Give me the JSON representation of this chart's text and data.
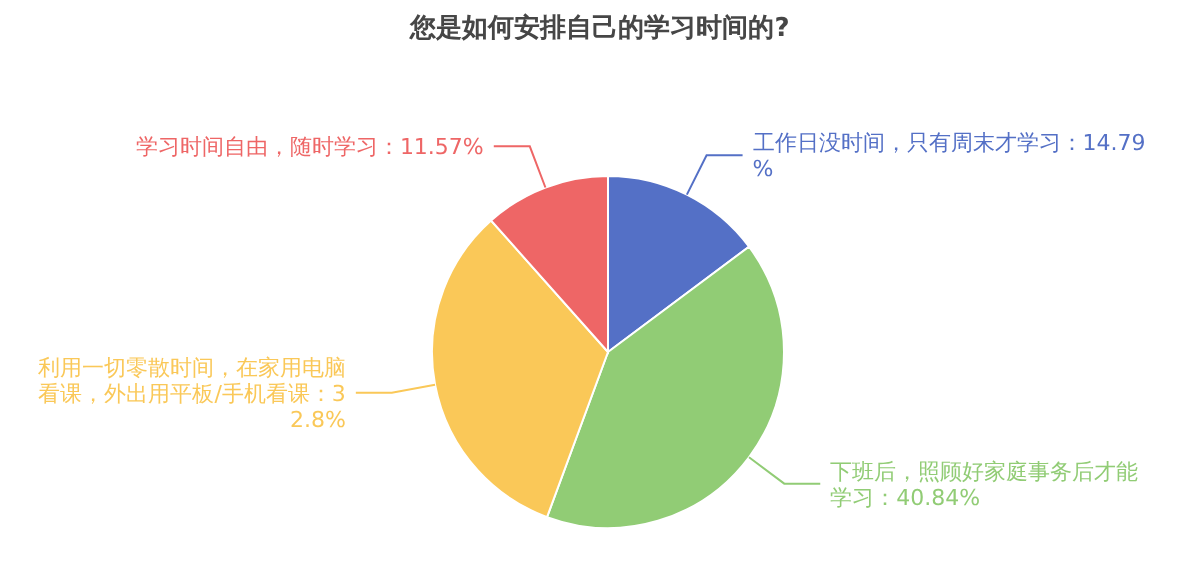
{
  "chart_data": {
    "type": "pie",
    "title": "您是如何安排自己的学习时间的?",
    "categories": [
      "工作日没时间，只有周末才学习",
      "下班后，照顾好家庭事务后才能学习",
      "利用一切零散时间，在家用电脑看课，外出用平板/手机看课",
      "学习时间自由，随时学习"
    ],
    "values": [
      14.79,
      40.84,
      32.8,
      11.57
    ],
    "value_labels": [
      "：14.79%",
      "：40.84%",
      "：32.8%",
      "：11.57%"
    ],
    "colors": [
      "#5470c6",
      "#91cc75",
      "#fac858",
      "#ee6666"
    ]
  }
}
